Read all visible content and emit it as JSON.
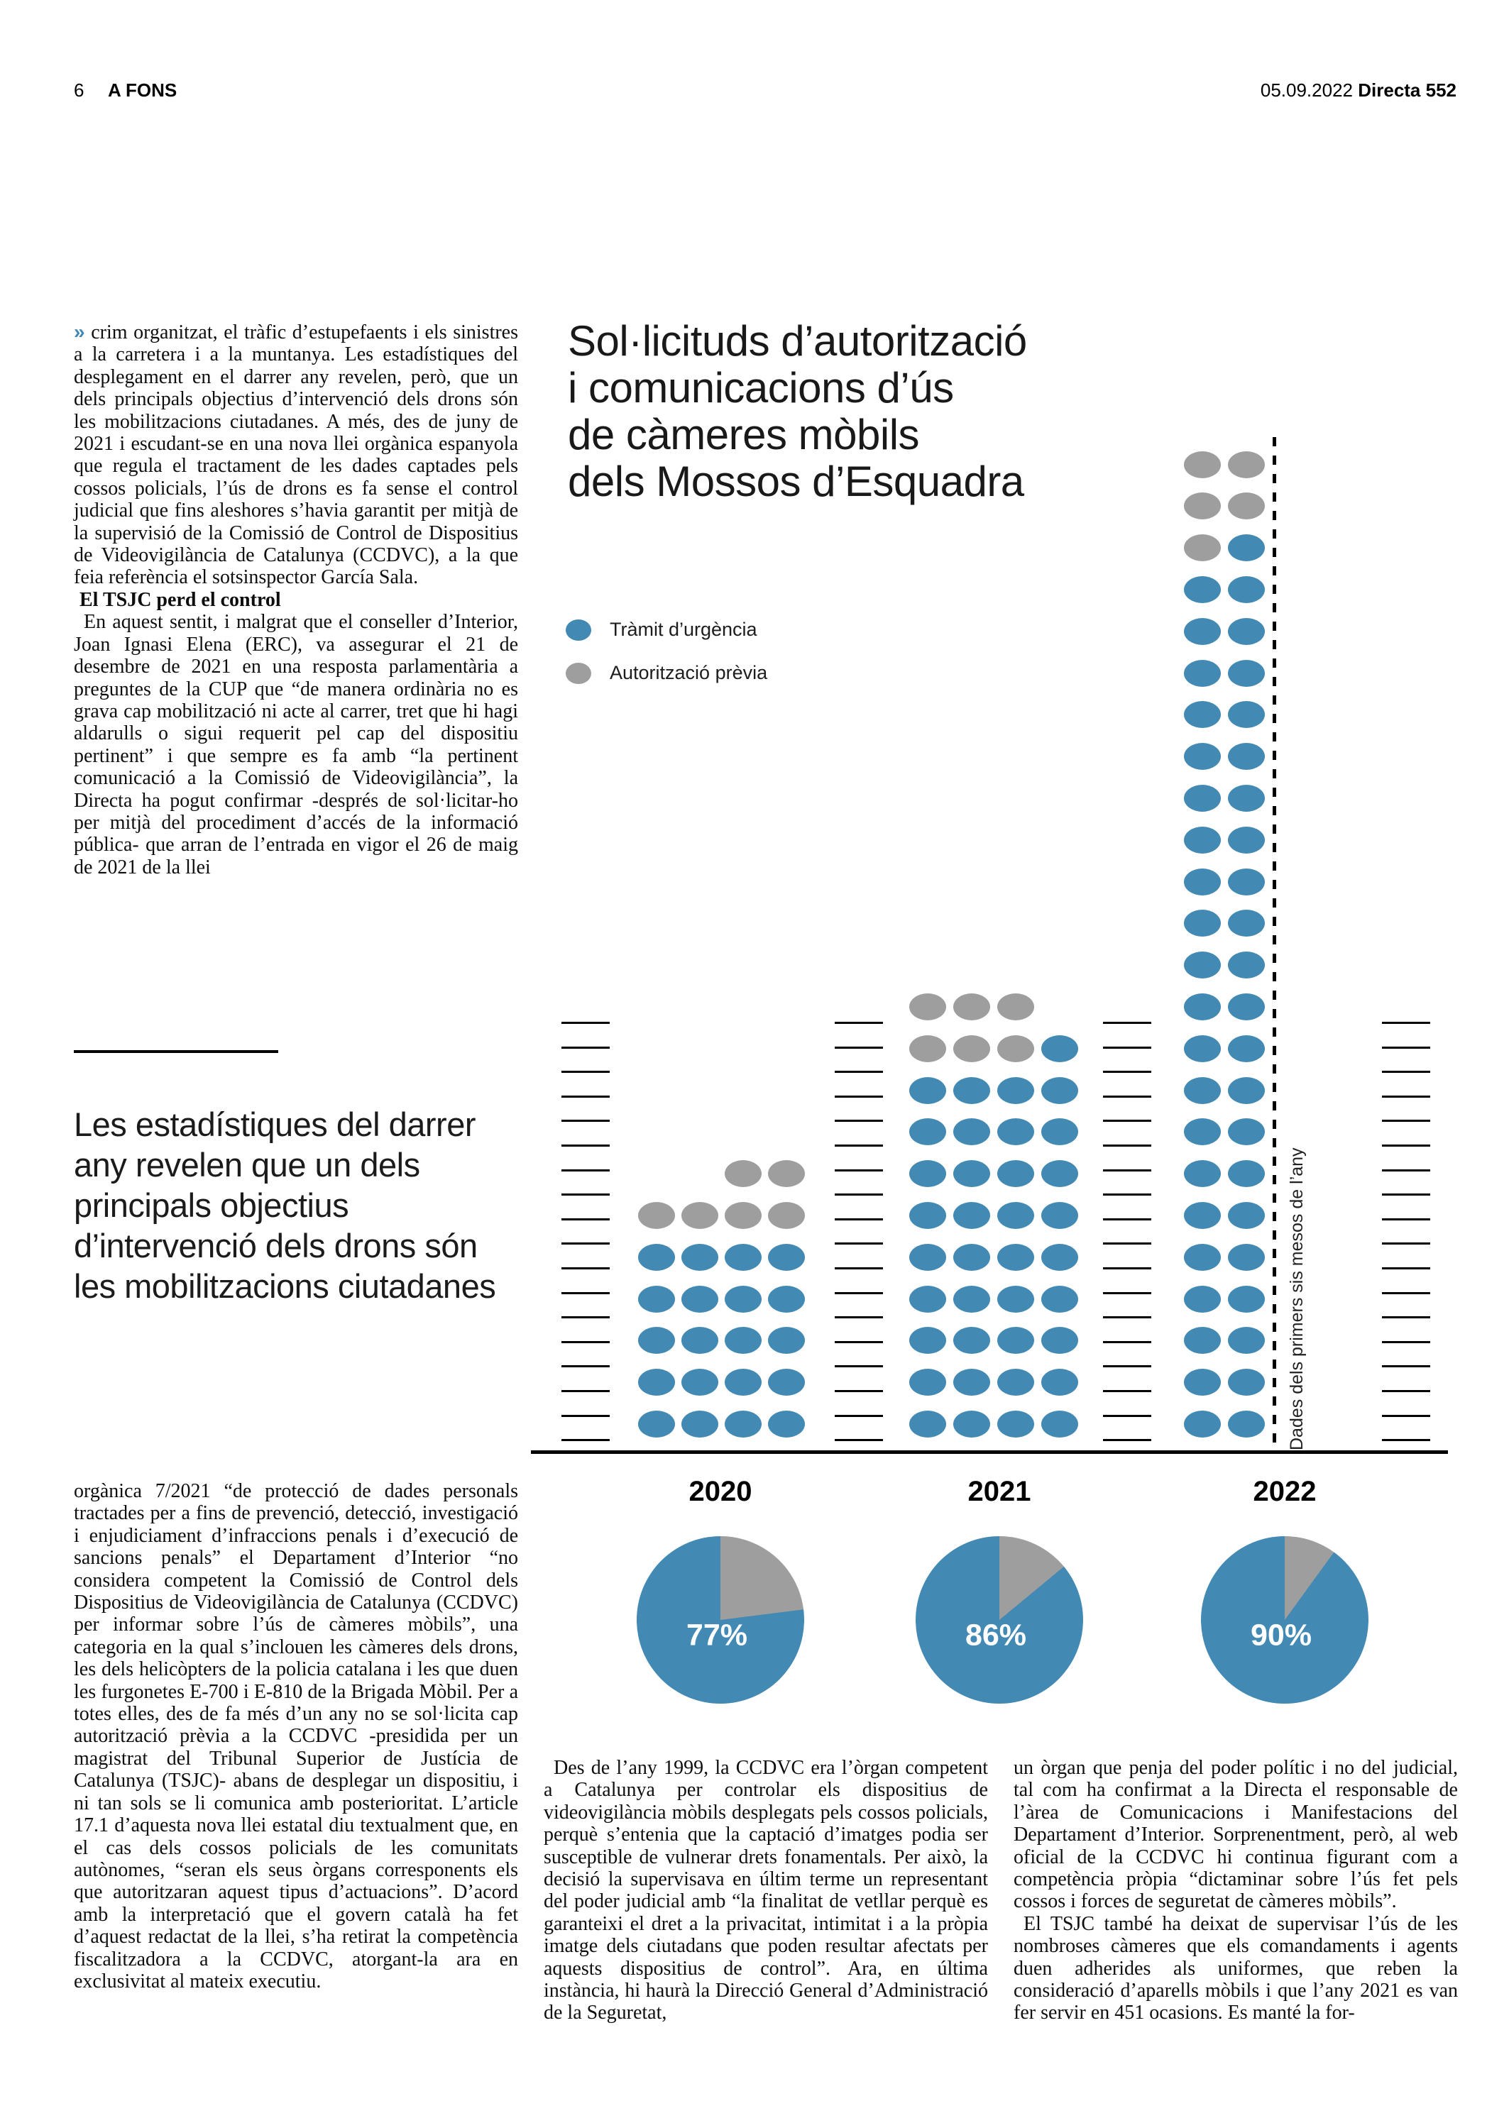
{
  "header": {
    "page_number": "6",
    "section": "A FONS",
    "date": "05.09.2022",
    "publication": "Directa 552"
  },
  "article": {
    "col1_marker": "»",
    "col1_para1": "crim organitzat, el tràfic d’estupefaents i els sinistres a la carretera i a la muntanya. Les estadístiques del desplegament en el darrer any revelen, però, que un dels principals objectius d’intervenció dels drons són les mobilitzacions ciutadanes. A més, des de juny de 2021 i escudant-se en una nova llei orgànica espanyola que regula el tractament de les dades captades pels cossos policials, l’ús de drons es fa sense el control judicial que fins aleshores s’havia garantit per mitjà de la supervisió de la Comissió de Control de Dispositius de Videovigilància de Catalunya (CCDVC), a la que feia referència el sotsinspector García Sala.",
    "col1_heading": "El TSJC perd el control",
    "col1_para2": "En aquest sentit, i malgrat que el conseller d’Interior, Joan Ignasi Elena (ERC), va assegurar el 21 de desembre de 2021 en una resposta parlamentària a preguntes de la CUP que “de manera ordinària no es grava cap mobilització ni acte al carrer, tret que hi hagi aldarulls o sigui requerit pel cap del dispositiu pertinent” i que sempre es fa amb “la pertinent comunicació a la Comissió de Videovigilància”, la Directa ha pogut confirmar -després de sol·licitar-ho per mitjà del procediment d’accés de la informació pública- que arran de l’entrada en vigor el 26 de maig de 2021 de la llei",
    "pull_quote": "Les estadístiques del darrer any revelen que un dels principals objectius d’intervenció dels drons són les mobilitzacions ciutadanes",
    "col1_para3": "orgànica 7/2021 “de protecció de dades personals tractades per a fins de prevenció, detecció, investigació i enjudiciament d’infraccions penals i d’execució de sancions penals” el Departament d’Interior “no considera competent la Comissió de Control dels Dispositius de Videovigilància de Catalunya (CCDVC) per informar sobre l’ús de càmeres mòbils”, una categoria en la qual s’inclouen les càmeres dels drons, les dels helicòpters de la policia catalana i les que duen les furgonetes E-700 i E-810 de la Brigada Mòbil. Per a totes elles, des de fa més d’un any no se sol·licita cap autorització prèvia a la CCDVC -presidida per un magistrat del Tribunal Superior de Justícia de Catalunya (TSJC)- abans de desplegar un dispositiu, i ni tan sols se li comunica amb posterioritat. L’article 17.1 d’aquesta nova llei estatal diu textualment que, en el cas dels cossos policials de les comunitats autònomes, “seran els seus òrgans corresponents els que autoritzaran aquest tipus d’actuacions”. D’acord amb la interpretació que el govern català ha fet d’aquest redactat de la llei, s’ha retirat la competència fiscalitzadora a la CCDVC, atorgant-la ara en exclusivitat al mateix executiu.",
    "col2_para": "Des de l’any 1999, la CCDVC era l’òrgan competent a Catalunya per controlar els dispositius de videovigilància mòbils desplegats pels cossos policials, perquè s’entenia que la captació d’imatges podia ser susceptible de vulnerar drets fonamentals. Per això, la decisió la supervisava en últim terme un representant del poder judicial amb “la finalitat de vetllar perquè es garanteixi el dret a la privacitat, intimitat i a la pròpia imatge dels ciutadans que poden resultar afectats per aquests dispositius de control”. Ara, en última instància, hi haurà la Direcció General d’Administració de la Seguretat,",
    "col3_para1": "un òrgan que penja del poder polític i no del judicial, tal com ha confirmat a la Directa el responsable de l’àrea de Comunicacions i Manifestacions del Departament d’Interior. Sorprenentment, però, al web oficial de la CCDVC hi continua figurant com a competència pròpia “dictaminar sobre l’ús fet pels cossos i forces de seguretat de càmeres mòbils”.",
    "col3_para2": "El TSJC també ha deixat de supervisar l’ús de les nombroses càmeres que els comandaments i agents duen adherides als uniformes, que reben la consideració d’aparells mòbils i que l’any 2021 es van fer servir en 451 ocasions. Es manté la for-"
  },
  "chart_data": {
    "type": "pictogram",
    "title": "Sol·licituds d’autorització i comunicacions d’ús de càmeres mòbils dels Mossos d’Esquadra",
    "title_lines": [
      "Sol·licituds d’autorització",
      "i comunicacions d’ús",
      "de càmeres mòbils",
      "dels Mossos d’Esquadra"
    ],
    "legend": [
      {
        "label": "Tràmit d’urgència",
        "color": "#4289b3"
      },
      {
        "label": "Autorització prèvia",
        "color": "#9e9e9e"
      }
    ],
    "colors": {
      "urgent": "#4289b3",
      "previa": "#9e9e9e"
    },
    "note_2022": "Dades dels primers sis mesos de l’any",
    "groups": [
      {
        "year": "2020",
        "columns": [
          {
            "previa": 1,
            "urgent": 5
          },
          {
            "previa": 1,
            "urgent": 5
          },
          {
            "previa": 2,
            "urgent": 5
          },
          {
            "previa": 2,
            "urgent": 5
          }
        ],
        "totals": {
          "urgent": 20,
          "previa": 6,
          "total": 26
        },
        "pct_urgent_label": "77%",
        "pct_urgent_value": 77
      },
      {
        "year": "2021",
        "columns": [
          {
            "previa": 2,
            "urgent": 9
          },
          {
            "previa": 2,
            "urgent": 9
          },
          {
            "previa": 2,
            "urgent": 9
          },
          {
            "previa": 0,
            "urgent": 10
          }
        ],
        "totals": {
          "urgent": 37,
          "previa": 6,
          "total": 43
        },
        "pct_urgent_label": "86%",
        "pct_urgent_value": 86
      },
      {
        "year": "2022",
        "columns": [
          {
            "previa": 3,
            "urgent": 21
          },
          {
            "previa": 2,
            "urgent": 22
          }
        ],
        "totals": {
          "urgent": 43,
          "previa": 5,
          "total": 48
        },
        "pct_urgent_label": "90%",
        "pct_urgent_value": 90
      }
    ]
  }
}
